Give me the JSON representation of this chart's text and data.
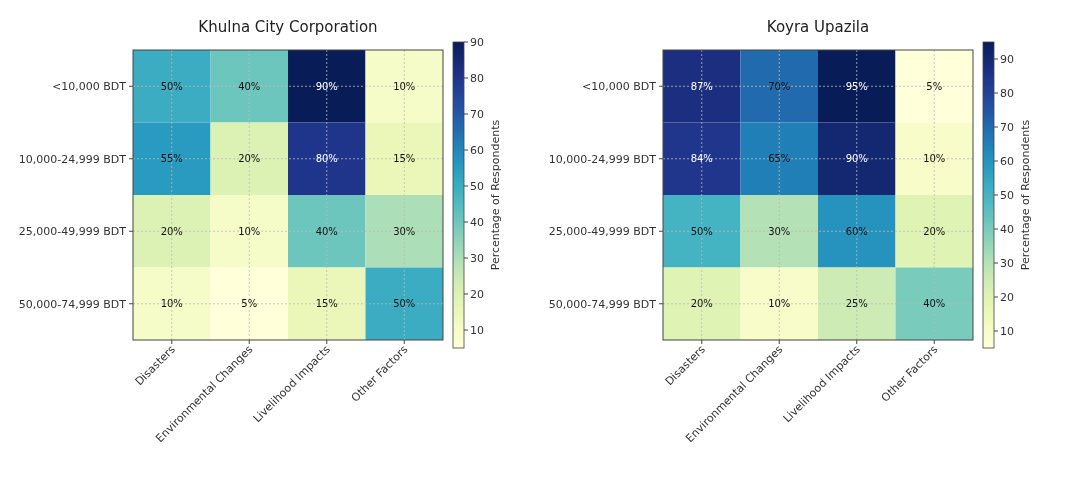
{
  "chart_data": [
    {
      "type": "heatmap",
      "title": "Khulna City Corporation",
      "clabel": "Percentage of Respondents",
      "categories": [
        "Disasters",
        "Environmental Changes",
        "Livelihood Impacts",
        "Other Factors"
      ],
      "y_categories": [
        "<10,000 BDT",
        "10,000-24,999 BDT",
        "25,000-49,999 BDT",
        "50,000-74,999 BDT"
      ],
      "cells": [
        [
          50,
          40,
          90,
          10
        ],
        [
          55,
          20,
          80,
          15
        ],
        [
          20,
          10,
          40,
          30
        ],
        [
          10,
          5,
          15,
          50
        ]
      ],
      "cell_labels": [
        [
          "50%",
          "40%",
          "90%",
          "10%"
        ],
        [
          "55%",
          "20%",
          "80%",
          "15%"
        ],
        [
          "20%",
          "10%",
          "40%",
          "30%"
        ],
        [
          "10%",
          "5%",
          "15%",
          "50%"
        ]
      ],
      "clim": [
        5,
        90
      ],
      "cticks": [
        10,
        20,
        30,
        40,
        50,
        60,
        70,
        80,
        90
      ],
      "grid": true
    },
    {
      "type": "heatmap",
      "title": "Koyra Upazila",
      "clabel": "Percentage of Respondents",
      "categories": [
        "Disasters",
        "Environmental Changes",
        "Livelihood Impacts",
        "Other Factors"
      ],
      "y_categories": [
        "<10,000 BDT",
        "10,000-24,999 BDT",
        "25,000-49,999 BDT",
        "50,000-74,999 BDT"
      ],
      "cells": [
        [
          87,
          70,
          95,
          5
        ],
        [
          84,
          65,
          90,
          10
        ],
        [
          50,
          30,
          60,
          20
        ],
        [
          20,
          10,
          25,
          40
        ]
      ],
      "cell_labels": [
        [
          "87%",
          "70%",
          "95%",
          "5%"
        ],
        [
          "84%",
          "65%",
          "90%",
          "10%"
        ],
        [
          "50%",
          "30%",
          "60%",
          "20%"
        ],
        [
          "20%",
          "10%",
          "25%",
          "40%"
        ]
      ],
      "clim": [
        5,
        95
      ],
      "cticks": [
        10,
        20,
        30,
        40,
        50,
        60,
        70,
        80,
        90
      ],
      "grid": true
    }
  ]
}
